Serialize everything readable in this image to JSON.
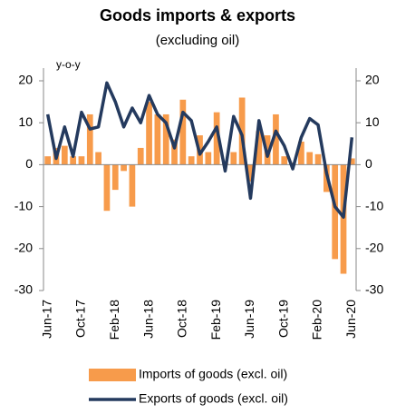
{
  "chart_data": {
    "type": "bar_line",
    "title": "Goods imports & exports",
    "subtitle": "(excluding oil)",
    "annotation": "y-o-y",
    "categories": [
      "Jun-17",
      null,
      null,
      null,
      "Oct-17",
      null,
      null,
      null,
      "Feb-18",
      null,
      null,
      null,
      "Jun-18",
      null,
      null,
      null,
      "Oct-18",
      null,
      null,
      null,
      "Feb-19",
      null,
      null,
      null,
      "Jun-19",
      null,
      null,
      null,
      "Oct-19",
      null,
      null,
      null,
      "Feb-20",
      null,
      null,
      null,
      "Jun-20"
    ],
    "series": [
      {
        "name": "Imports of goods (excl. oil)",
        "type": "bar",
        "color": "#f79b4b",
        "values": [
          2,
          4,
          4.5,
          2,
          2,
          12,
          3,
          -11,
          -6,
          -1.5,
          -10,
          4,
          15,
          12,
          12,
          6,
          15.5,
          2,
          7,
          3,
          12.5,
          0.5,
          3,
          16,
          -4,
          8,
          7,
          12,
          2,
          0.5,
          5.5,
          3,
          2.5,
          -6.5,
          -22.5,
          -26,
          1.5
        ]
      },
      {
        "name": "Exports of goods (excl. oil)",
        "type": "line",
        "color": "#243a5e",
        "axis": "y2",
        "values": [
          12,
          1.5,
          9,
          2,
          12.5,
          8.5,
          9,
          19.5,
          15,
          9,
          13.5,
          10,
          16.5,
          12,
          10,
          4,
          12.5,
          10.5,
          2.5,
          5.5,
          9,
          -1.5,
          11.5,
          7,
          -8,
          10.5,
          2,
          8,
          4.5,
          -1,
          6.5,
          11,
          9.5,
          -2,
          -10,
          -12.5,
          6.5
        ]
      }
    ],
    "ylim": [
      -30,
      20
    ],
    "yticks": [
      -30,
      -20,
      -10,
      0,
      10,
      20
    ],
    "y2lim": [
      -30,
      20
    ],
    "y2ticks": [
      -30,
      -20,
      -10,
      0,
      10,
      20
    ]
  }
}
